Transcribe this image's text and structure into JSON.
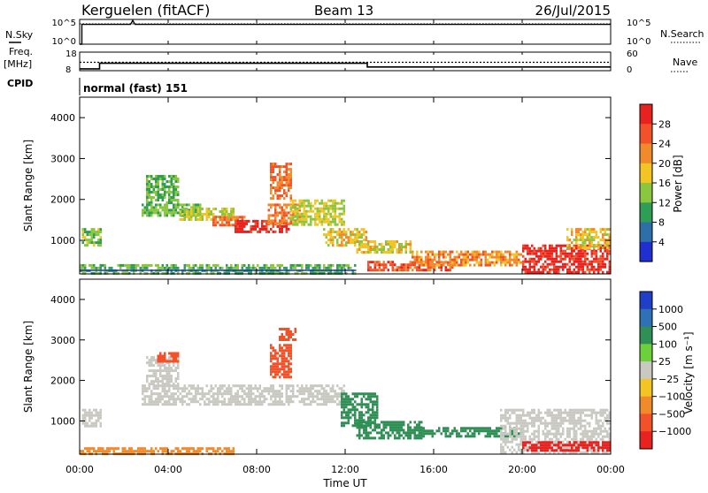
{
  "header": {
    "station": "Kerguelen (fitACF)",
    "beam": "Beam 13",
    "date": "26/Jul/2015"
  },
  "top_panels": {
    "nsky_label": "N.Sky",
    "nsearch_label": "N.Search",
    "noise_ticks": [
      "10^5",
      "10^0"
    ],
    "freq_label": "Freq.",
    "freq_unit": "[MHz]",
    "freq_ticks": [
      "18",
      "8"
    ],
    "nave_label": "Nave",
    "nave_ticks": [
      "60",
      "0"
    ],
    "cpid_label": "CPID",
    "cpid_value": "normal (fast) 151"
  },
  "axes": {
    "ylabel": "Slant Range [km]",
    "xlabel": "Time UT",
    "y_ticks": [
      "1000",
      "2000",
      "3000",
      "4000"
    ],
    "x_ticks": [
      "00:00",
      "04:00",
      "08:00",
      "12:00",
      "16:00",
      "20:00",
      "00:00"
    ]
  },
  "power_colorbar": {
    "label": "Power [dB]",
    "ticks": [
      "28",
      "24",
      "20",
      "16",
      "12",
      "8",
      "4"
    ],
    "colors": [
      "#e8231f",
      "#f2522a",
      "#f08a2a",
      "#f2c524",
      "#8bc63f",
      "#2e9e55",
      "#2f6fa8",
      "#1f2fd0"
    ]
  },
  "velocity_colorbar": {
    "label": "Velocity [m s⁻¹]",
    "ticks": [
      "1000",
      "500",
      "100",
      "25",
      "−25",
      "−100",
      "−500",
      "−1000"
    ],
    "colors": [
      "#1f3fc8",
      "#3070b4",
      "#2f8f54",
      "#6ccf3c",
      "#c9c9c2",
      "#f2c524",
      "#f08a2a",
      "#f2522a",
      "#e8231f"
    ]
  },
  "chart_data": [
    {
      "type": "heatmap",
      "title": "Power",
      "xlabel": "Time UT",
      "ylabel": "Slant Range [km]",
      "x_unit": "hours UT",
      "xlim": [
        0,
        24
      ],
      "ylim": [
        180,
        4500
      ],
      "color_label": "Power [dB]",
      "regions": [
        {
          "x": [
            0.1,
            1.0
          ],
          "y": [
            900,
            1300
          ],
          "value": 12
        },
        {
          "x": [
            0.0,
            12.5
          ],
          "y": [
            180,
            420
          ],
          "value": 10
        },
        {
          "x": [
            3.0,
            4.5
          ],
          "y": [
            1900,
            2600
          ],
          "value": 10
        },
        {
          "x": [
            2.8,
            5.5
          ],
          "y": [
            1600,
            1900
          ],
          "value": 10
        },
        {
          "x": [
            4.5,
            7.0
          ],
          "y": [
            1500,
            1800
          ],
          "value": 14
        },
        {
          "x": [
            6.0,
            7.5
          ],
          "y": [
            1400,
            1600
          ],
          "value": 22
        },
        {
          "x": [
            7.0,
            9.5
          ],
          "y": [
            1200,
            1500
          ],
          "value": 28
        },
        {
          "x": [
            8.5,
            10.0
          ],
          "y": [
            1400,
            1900
          ],
          "value": 22
        },
        {
          "x": [
            8.6,
            9.6
          ],
          "y": [
            2000,
            2900
          ],
          "value": 22
        },
        {
          "x": [
            9.5,
            12.0
          ],
          "y": [
            1400,
            2000
          ],
          "value": 14
        },
        {
          "x": [
            11.0,
            13.0
          ],
          "y": [
            900,
            1300
          ],
          "value": 16
        },
        {
          "x": [
            12.5,
            15.0
          ],
          "y": [
            700,
            1000
          ],
          "value": 16
        },
        {
          "x": [
            13.0,
            17.0
          ],
          "y": [
            250,
            500
          ],
          "value": 24
        },
        {
          "x": [
            15.0,
            20.0
          ],
          "y": [
            400,
            750
          ],
          "value": 20
        },
        {
          "x": [
            20.0,
            24.0
          ],
          "y": [
            200,
            900
          ],
          "value": 28
        },
        {
          "x": [
            22.0,
            24.0
          ],
          "y": [
            800,
            1300
          ],
          "value": 16
        }
      ]
    },
    {
      "type": "heatmap",
      "title": "Velocity",
      "xlabel": "Time UT",
      "ylabel": "Slant Range [km]",
      "x_unit": "hours UT",
      "xlim": [
        0,
        24
      ],
      "ylim": [
        180,
        4500
      ],
      "color_label": "Velocity [m s⁻¹]",
      "regions": [
        {
          "x": [
            0.1,
            1.0
          ],
          "y": [
            900,
            1300
          ],
          "value": 0
        },
        {
          "x": [
            0.0,
            7.0
          ],
          "y": [
            180,
            350
          ],
          "value": -100
        },
        {
          "x": [
            3.0,
            4.5
          ],
          "y": [
            1900,
            2600
          ],
          "value": 0
        },
        {
          "x": [
            3.5,
            4.5
          ],
          "y": [
            2500,
            2700
          ],
          "value": -500
        },
        {
          "x": [
            2.8,
            12.0
          ],
          "y": [
            1400,
            1900
          ],
          "value": 0
        },
        {
          "x": [
            8.6,
            9.6
          ],
          "y": [
            2100,
            2900
          ],
          "value": -500
        },
        {
          "x": [
            9.0,
            9.8
          ],
          "y": [
            3000,
            3300
          ],
          "value": -500
        },
        {
          "x": [
            11.8,
            13.5
          ],
          "y": [
            900,
            1700
          ],
          "value": 100
        },
        {
          "x": [
            12.5,
            15.5
          ],
          "y": [
            600,
            1000
          ],
          "value": 100
        },
        {
          "x": [
            15.5,
            20.0
          ],
          "y": [
            650,
            850
          ],
          "value": 100
        },
        {
          "x": [
            19.0,
            24.0
          ],
          "y": [
            250,
            1300
          ],
          "value": 0
        },
        {
          "x": [
            20.0,
            24.0
          ],
          "y": [
            250,
            500
          ],
          "value": -1000
        }
      ]
    },
    {
      "type": "line",
      "title": "Freq.",
      "ylabel": "[MHz]",
      "ylim": [
        8,
        18
      ],
      "xlim": [
        0,
        24
      ],
      "series": [
        {
          "name": "Freq.",
          "x": [
            0,
            0.9,
            0.9,
            13.0,
            13.0,
            24
          ],
          "y": [
            9,
            9,
            12,
            12,
            10,
            10
          ]
        },
        {
          "name": "Nave",
          "x": [
            0,
            24
          ],
          "y": [
            12.5,
            12.5
          ]
        }
      ]
    },
    {
      "type": "line",
      "title": "N.Sky",
      "ylim": [
        0,
        5
      ],
      "xlim": [
        0,
        24
      ],
      "series": [
        {
          "name": "N.Sky",
          "x": [
            0,
            0.1,
            0.1,
            2.3,
            2.4,
            2.5,
            24
          ],
          "y": [
            0,
            0,
            4,
            4,
            4.8,
            4,
            4
          ]
        },
        {
          "name": "N.Search",
          "x": [
            0,
            24
          ],
          "y": [
            4.1,
            4.1
          ]
        }
      ]
    }
  ]
}
